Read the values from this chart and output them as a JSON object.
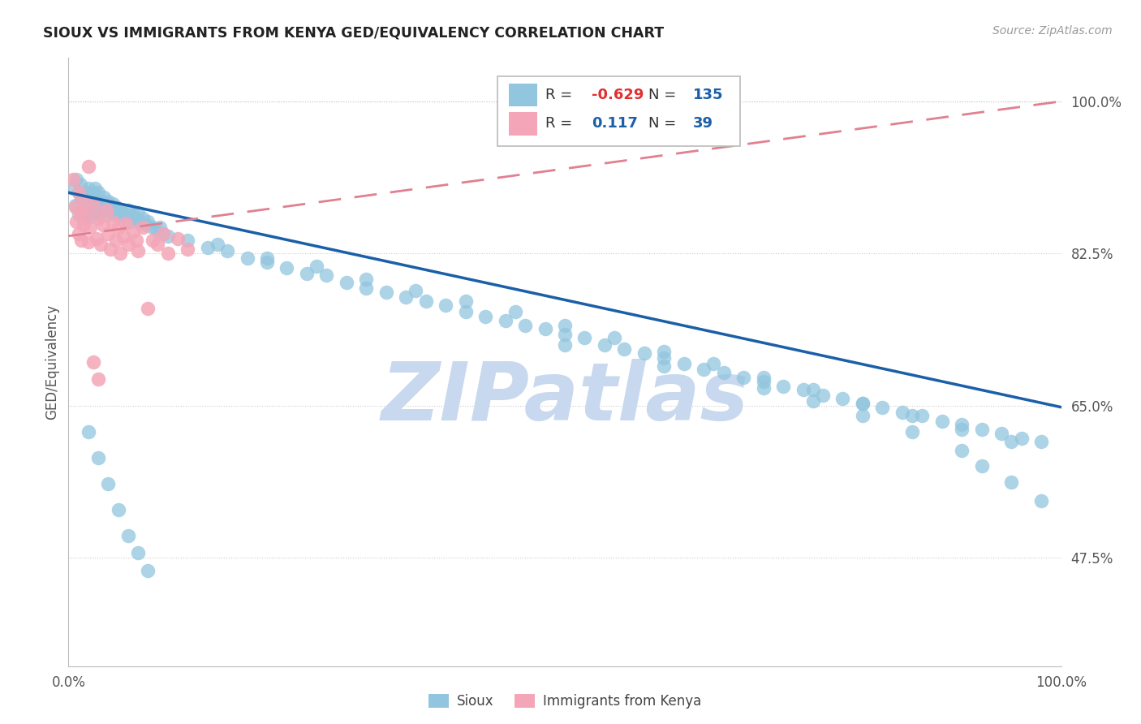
{
  "title": "SIOUX VS IMMIGRANTS FROM KENYA GED/EQUIVALENCY CORRELATION CHART",
  "source_text": "Source: ZipAtlas.com",
  "ylabel": "GED/Equivalency",
  "xlim": [
    0.0,
    1.0
  ],
  "ylim": [
    0.35,
    1.05
  ],
  "x_tick_labels": [
    "0.0%",
    "100.0%"
  ],
  "y_tick_labels": [
    "47.5%",
    "65.0%",
    "82.5%",
    "100.0%"
  ],
  "y_tick_values": [
    0.475,
    0.65,
    0.825,
    1.0
  ],
  "legend_r1": "-0.629",
  "legend_n1": "135",
  "legend_r2": "0.117",
  "legend_n2": "39",
  "blue_color": "#92c5de",
  "pink_color": "#f4a6b8",
  "blue_line_color": "#1a5fa8",
  "pink_line_color": "#e08090",
  "watermark": "ZIPatlas",
  "watermark_color": "#c8d8ee",
  "background_color": "#ffffff",
  "grid_color": "#cccccc",
  "blue_line_start_y": 0.895,
  "blue_line_end_y": 0.648,
  "pink_line_start_y": 0.845,
  "pink_line_end_y": 1.0
}
